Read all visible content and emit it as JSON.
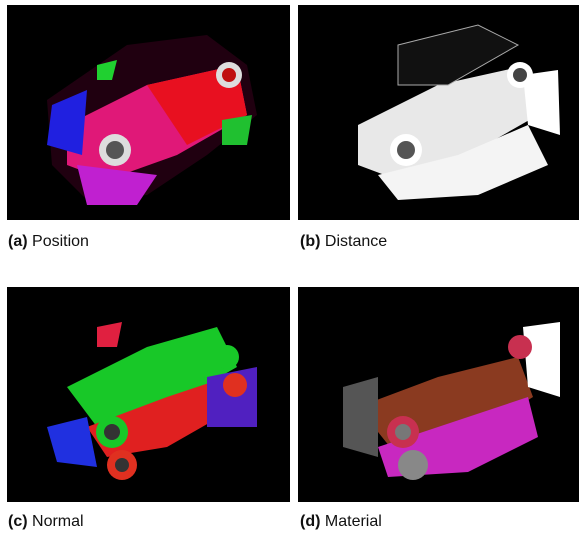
{
  "panels": [
    {
      "label": "(a)",
      "caption": "Position"
    },
    {
      "label": "(b)",
      "caption": "Distance"
    },
    {
      "label": "(c)",
      "caption": "Normal"
    },
    {
      "label": "(d)",
      "caption": "Material"
    }
  ]
}
